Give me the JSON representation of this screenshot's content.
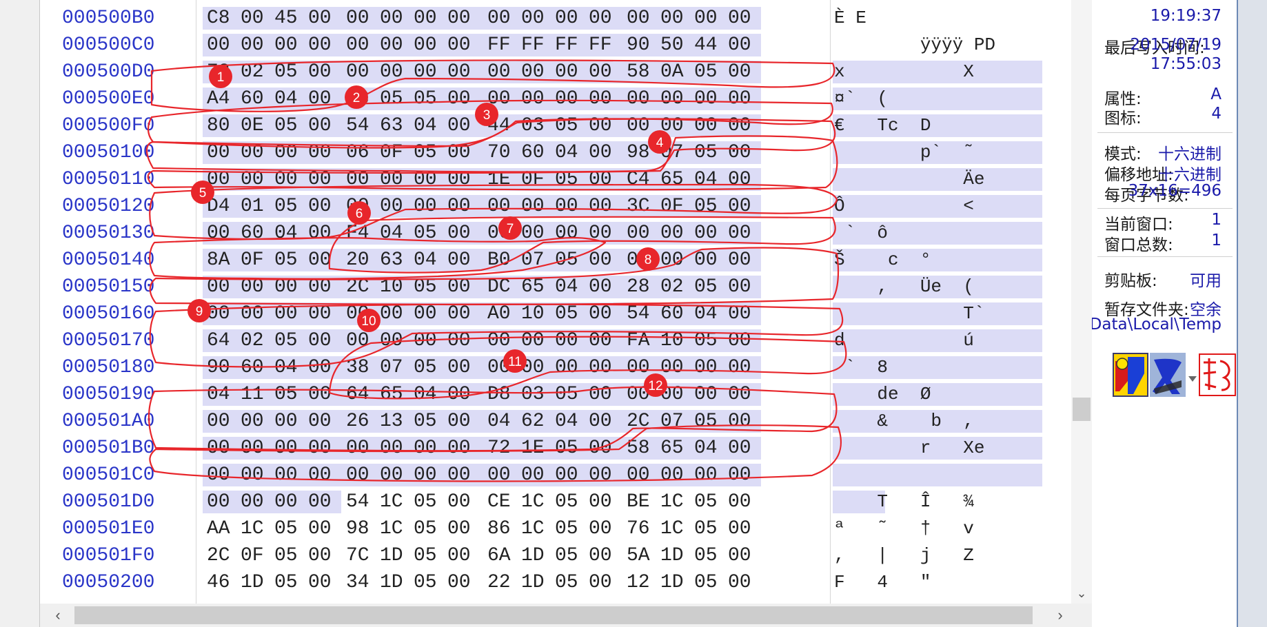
{
  "hex_rows": [
    {
      "offset": "000500B0",
      "bytes": [
        "C8",
        "00",
        "45",
        "00",
        "00",
        "00",
        "00",
        "00",
        "00",
        "00",
        "00",
        "00",
        "00",
        "00",
        "00",
        "00"
      ],
      "ascii": "È E"
    },
    {
      "offset": "000500C0",
      "bytes": [
        "00",
        "00",
        "00",
        "00",
        "00",
        "00",
        "00",
        "00",
        "FF",
        "FF",
        "FF",
        "FF",
        "90",
        "50",
        "44",
        "00"
      ],
      "ascii": "        ÿÿÿÿ PD"
    },
    {
      "offset": "000500D0",
      "bytes": [
        "78",
        "02",
        "05",
        "00",
        "00",
        "00",
        "00",
        "00",
        "00",
        "00",
        "00",
        "00",
        "58",
        "0A",
        "05",
        "00"
      ],
      "ascii": "x           X"
    },
    {
      "offset": "000500E0",
      "bytes": [
        "A4",
        "60",
        "04",
        "00",
        "28",
        "05",
        "05",
        "00",
        "00",
        "00",
        "00",
        "00",
        "00",
        "00",
        "00",
        "00"
      ],
      "ascii": "¤`  ("
    },
    {
      "offset": "000500F0",
      "bytes": [
        "80",
        "0E",
        "05",
        "00",
        "54",
        "63",
        "04",
        "00",
        "44",
        "03",
        "05",
        "00",
        "00",
        "00",
        "00",
        "00"
      ],
      "ascii": "€   Tc  D"
    },
    {
      "offset": "00050100",
      "bytes": [
        "00",
        "00",
        "00",
        "00",
        "06",
        "0F",
        "05",
        "00",
        "70",
        "60",
        "04",
        "00",
        "98",
        "07",
        "05",
        "00"
      ],
      "ascii": "        p`  ˜"
    },
    {
      "offset": "00050110",
      "bytes": [
        "00",
        "00",
        "00",
        "00",
        "00",
        "00",
        "00",
        "00",
        "1E",
        "0F",
        "05",
        "00",
        "C4",
        "65",
        "04",
        "00"
      ],
      "ascii": "            Äe"
    },
    {
      "offset": "00050120",
      "bytes": [
        "D4",
        "01",
        "05",
        "00",
        "00",
        "00",
        "00",
        "00",
        "00",
        "00",
        "00",
        "00",
        "3C",
        "0F",
        "05",
        "00"
      ],
      "ascii": "Ô           <"
    },
    {
      "offset": "00050130",
      "bytes": [
        "00",
        "60",
        "04",
        "00",
        "F4",
        "04",
        "05",
        "00",
        "00",
        "00",
        "00",
        "00",
        "00",
        "00",
        "00",
        "00"
      ],
      "ascii": " `  ô"
    },
    {
      "offset": "00050140",
      "bytes": [
        "8A",
        "0F",
        "05",
        "00",
        "20",
        "63",
        "04",
        "00",
        "B0",
        "07",
        "05",
        "00",
        "00",
        "00",
        "00",
        "00"
      ],
      "ascii": "Š    c  °"
    },
    {
      "offset": "00050150",
      "bytes": [
        "00",
        "00",
        "00",
        "00",
        "2C",
        "10",
        "05",
        "00",
        "DC",
        "65",
        "04",
        "00",
        "28",
        "02",
        "05",
        "00"
      ],
      "ascii": "    ,   Üe  ("
    },
    {
      "offset": "00050160",
      "bytes": [
        "00",
        "00",
        "00",
        "00",
        "00",
        "00",
        "00",
        "00",
        "A0",
        "10",
        "05",
        "00",
        "54",
        "60",
        "04",
        "00"
      ],
      "ascii": "            T`"
    },
    {
      "offset": "00050170",
      "bytes": [
        "64",
        "02",
        "05",
        "00",
        "00",
        "00",
        "00",
        "00",
        "00",
        "00",
        "00",
        "00",
        "FA",
        "10",
        "05",
        "00"
      ],
      "ascii": "d           ú"
    },
    {
      "offset": "00050180",
      "bytes": [
        "90",
        "60",
        "04",
        "00",
        "38",
        "07",
        "05",
        "00",
        "00",
        "00",
        "00",
        "00",
        "00",
        "00",
        "00",
        "00"
      ],
      "ascii": " `  8"
    },
    {
      "offset": "00050190",
      "bytes": [
        "04",
        "11",
        "05",
        "00",
        "64",
        "65",
        "04",
        "00",
        "D8",
        "03",
        "05",
        "00",
        "00",
        "00",
        "00",
        "00"
      ],
      "ascii": "    de  Ø"
    },
    {
      "offset": "000501A0",
      "bytes": [
        "00",
        "00",
        "00",
        "00",
        "26",
        "13",
        "05",
        "00",
        "04",
        "62",
        "04",
        "00",
        "2C",
        "07",
        "05",
        "00"
      ],
      "ascii": "    &    b  ,"
    },
    {
      "offset": "000501B0",
      "bytes": [
        "00",
        "00",
        "00",
        "00",
        "00",
        "00",
        "00",
        "00",
        "72",
        "1E",
        "05",
        "00",
        "58",
        "65",
        "04",
        "00"
      ],
      "ascii": "        r   Xe"
    },
    {
      "offset": "000501C0",
      "bytes": [
        "00",
        "00",
        "00",
        "00",
        "00",
        "00",
        "00",
        "00",
        "00",
        "00",
        "00",
        "00",
        "00",
        "00",
        "00",
        "00"
      ],
      "ascii": ""
    },
    {
      "offset": "000501D0",
      "bytes": [
        "00",
        "00",
        "00",
        "00",
        "54",
        "1C",
        "05",
        "00",
        "CE",
        "1C",
        "05",
        "00",
        "BE",
        "1C",
        "05",
        "00"
      ],
      "ascii": "    T   Î   ¾"
    },
    {
      "offset": "000501E0",
      "bytes": [
        "AA",
        "1C",
        "05",
        "00",
        "98",
        "1C",
        "05",
        "00",
        "86",
        "1C",
        "05",
        "00",
        "76",
        "1C",
        "05",
        "00"
      ],
      "ascii": "ª   ˜   †   v"
    },
    {
      "offset": "000501F0",
      "bytes": [
        "2C",
        "0F",
        "05",
        "00",
        "7C",
        "1D",
        "05",
        "00",
        "6A",
        "1D",
        "05",
        "00",
        "5A",
        "1D",
        "05",
        "00"
      ],
      "ascii": ",   |   j   Z"
    },
    {
      "offset": "00050200",
      "bytes": [
        "46",
        "1D",
        "05",
        "00",
        "34",
        "1D",
        "05",
        "00",
        "22",
        "1D",
        "05",
        "00",
        "12",
        "1D",
        "05",
        "00"
      ],
      "ascii": "F   4   \""
    }
  ],
  "annotation_numbers": [
    "1",
    "2",
    "3",
    "4",
    "5",
    "6",
    "7",
    "8",
    "9",
    "10",
    "11",
    "12"
  ],
  "annotation_color": "#e8262b",
  "side_panel": {
    "created_time": "19:19:37",
    "modified_label": "最后写入时间:",
    "modified_date": "2015/07/19",
    "modified_time": "17:55:03",
    "attr_label": "属性:",
    "attr_value": "A",
    "icon_label": "图标:",
    "icon_value": "4",
    "mode_label": "模式:",
    "mode_value": "十六进制",
    "offset_label": "偏移地址:",
    "offset_value": "十六进制",
    "bpp_label": "每页字节数:",
    "bpp_value": "37x16=496",
    "curwin_label": "当前窗口:",
    "curwin_value": "1",
    "winsum_label": "窗口总数:",
    "winsum_value": "1",
    "clip_label": "剪贴板:",
    "clip_value": "可用",
    "temp_label": "暂存文件夹:",
    "temp_value": "空余",
    "temp_path": "Data\\Local\\Temp"
  },
  "scroll": {
    "left_arrow": "‹",
    "right_arrow": "›",
    "down_arrow": "⌄"
  }
}
